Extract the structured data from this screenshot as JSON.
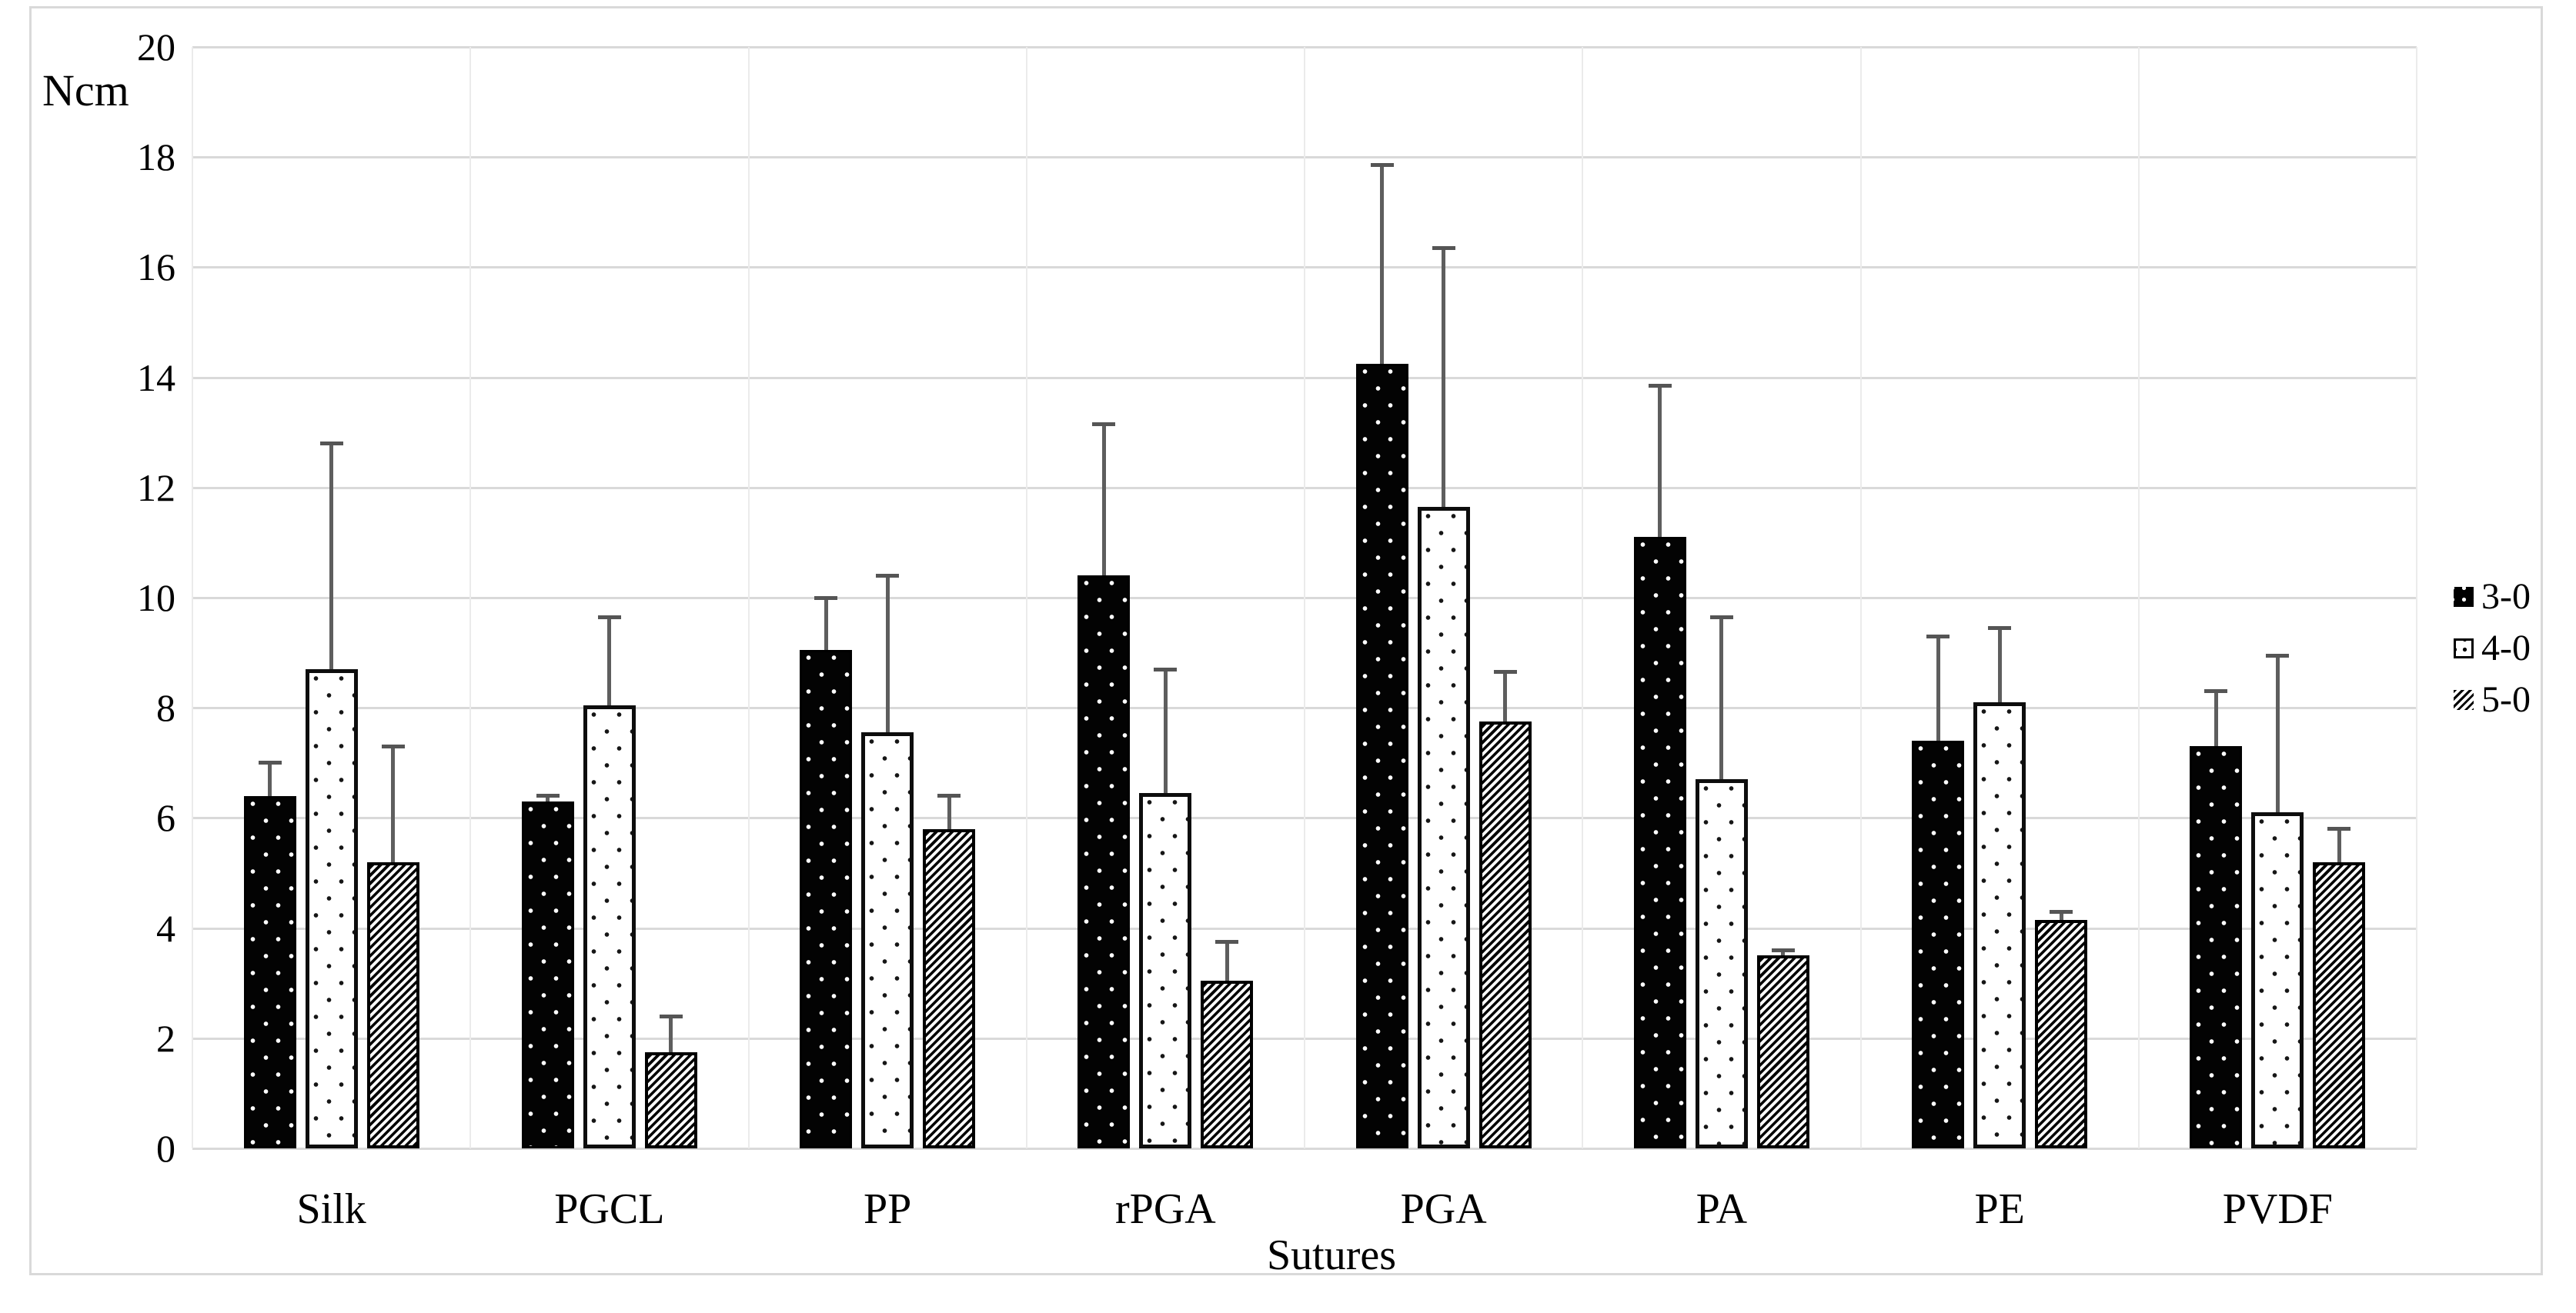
{
  "figure": {
    "unit_label": "Ncm",
    "x_axis_title": "Sutures"
  },
  "legend": {
    "position": "right-middle",
    "items": [
      "3-0",
      "4-0",
      "5-0"
    ]
  },
  "chart_data": {
    "type": "bar",
    "title": "",
    "xlabel": "Sutures",
    "ylabel": "Ncm",
    "ylim": [
      0,
      20
    ],
    "yticks": [
      0,
      2,
      4,
      6,
      8,
      10,
      12,
      14,
      16,
      18,
      20
    ],
    "grid": "horizontal major gridlines + faint vertical category-boundary lines, light gray",
    "legend_position": "right-middle",
    "error_bars": "upward only, gray line with cap",
    "categories": [
      "Silk",
      "PGCL",
      "PP",
      "rPGA",
      "PGA",
      "PA",
      "PE",
      "PVDF"
    ],
    "series": [
      {
        "name": "3-0",
        "pattern": "black-with-white-dots",
        "values": [
          6.4,
          6.3,
          9.05,
          10.4,
          14.25,
          11.1,
          7.4,
          7.3
        ],
        "error_up": [
          0.6,
          0.1,
          0.95,
          2.75,
          3.6,
          2.75,
          1.9,
          1.0
        ]
      },
      {
        "name": "4-0",
        "pattern": "white-with-black-dots",
        "values": [
          8.7,
          8.05,
          7.55,
          6.45,
          11.65,
          6.7,
          8.1,
          6.1
        ],
        "error_up": [
          4.1,
          1.6,
          2.85,
          2.25,
          4.7,
          2.95,
          1.35,
          2.85
        ]
      },
      {
        "name": "5-0",
        "pattern": "diagonal-stripes",
        "values": [
          5.2,
          1.75,
          5.8,
          3.05,
          7.75,
          3.5,
          4.15,
          5.2
        ],
        "error_up": [
          2.1,
          0.65,
          0.6,
          0.7,
          0.9,
          0.1,
          0.15,
          0.6
        ]
      }
    ],
    "colors": {
      "bar_outline": "#000000",
      "gridline": "#d9d9d9",
      "vertical_gridline": "#ebebeb",
      "error_bar": "#5e5e5e",
      "figure_border": "#d9d9d9",
      "text": "#000000"
    }
  }
}
